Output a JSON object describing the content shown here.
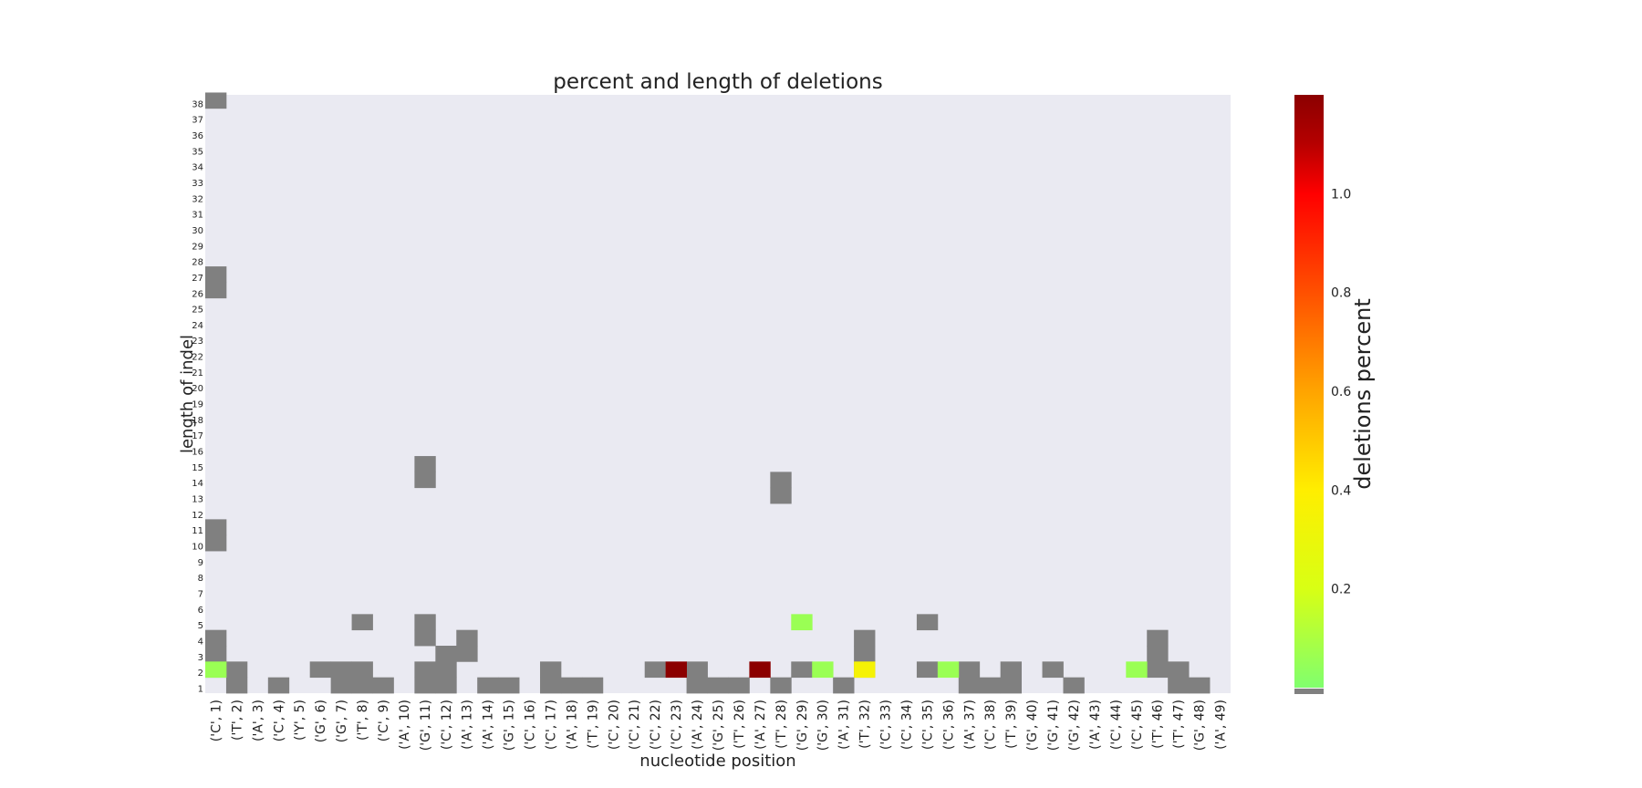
{
  "chart_data": {
    "type": "heatmap",
    "title": "percent and length of deletions",
    "xlabel": "nucleotide position",
    "ylabel": "length of indel",
    "colorbar_label": "deletions percent",
    "x_categories": [
      "('C', 1)",
      "('T', 2)",
      "('A', 3)",
      "('C', 4)",
      "('Y', 5)",
      "('G', 6)",
      "('G', 7)",
      "('T', 8)",
      "('C', 9)",
      "('A', 10)",
      "('G', 11)",
      "('C', 12)",
      "('A', 13)",
      "('A', 14)",
      "('G', 15)",
      "('C', 16)",
      "('C', 17)",
      "('A', 18)",
      "('T', 19)",
      "('C', 20)",
      "('C', 21)",
      "('C', 22)",
      "('C', 23)",
      "('A', 24)",
      "('G', 25)",
      "('T', 26)",
      "('A', 27)",
      "('T', 28)",
      "('G', 29)",
      "('G', 30)",
      "('A', 31)",
      "('T', 32)",
      "('C', 33)",
      "('C', 34)",
      "('C', 35)",
      "('C', 36)",
      "('A', 37)",
      "('C', 38)",
      "('T', 39)",
      "('G', 40)",
      "('G', 41)",
      "('G', 42)",
      "('A', 43)",
      "('C', 44)",
      "('C', 45)",
      "('T', 46)",
      "('T', 47)",
      "('G', 48)",
      "('A', 49)"
    ],
    "y_categories": [
      "1",
      "2",
      "3",
      "4",
      "5",
      "6",
      "7",
      "8",
      "9",
      "10",
      "11",
      "12",
      "13",
      "14",
      "15",
      "16",
      "17",
      "18",
      "19",
      "20",
      "21",
      "22",
      "23",
      "24",
      "25",
      "26",
      "27",
      "28",
      "29",
      "30",
      "31",
      "32",
      "33",
      "34",
      "35",
      "36",
      "37",
      "38"
    ],
    "colorbar_ticks": [
      "0.2",
      "0.4",
      "0.6",
      "0.8",
      "1.0"
    ],
    "colorbar_range": [
      0.0,
      1.2
    ],
    "colors": {
      "background": "#eaeaf2",
      "low_count": "#808080",
      "scale": [
        "#80ff6e",
        "#d8ff14",
        "#ffee00",
        "#ffa400",
        "#ff5000",
        "#ff0000",
        "#b40000",
        "#8b0000"
      ]
    },
    "low_cells": [
      [
        0,
        1
      ],
      [
        0,
        2
      ],
      [
        0,
        3
      ],
      [
        0,
        9
      ],
      [
        0,
        10
      ],
      [
        0,
        25
      ],
      [
        0,
        26
      ],
      [
        0,
        37
      ],
      [
        1,
        0
      ],
      [
        1,
        1
      ],
      [
        3,
        0
      ],
      [
        5,
        1
      ],
      [
        6,
        0
      ],
      [
        6,
        1
      ],
      [
        7,
        0
      ],
      [
        7,
        1
      ],
      [
        7,
        4
      ],
      [
        8,
        0
      ],
      [
        10,
        0
      ],
      [
        10,
        1
      ],
      [
        10,
        3
      ],
      [
        10,
        4
      ],
      [
        10,
        13
      ],
      [
        10,
        14
      ],
      [
        11,
        0
      ],
      [
        11,
        1
      ],
      [
        11,
        2
      ],
      [
        12,
        2
      ],
      [
        12,
        3
      ],
      [
        13,
        0
      ],
      [
        14,
        0
      ],
      [
        16,
        0
      ],
      [
        16,
        1
      ],
      [
        17,
        0
      ],
      [
        18,
        0
      ],
      [
        21,
        1
      ],
      [
        23,
        0
      ],
      [
        23,
        1
      ],
      [
        24,
        0
      ],
      [
        25,
        0
      ],
      [
        27,
        0
      ],
      [
        27,
        12
      ],
      [
        27,
        13
      ],
      [
        28,
        1
      ],
      [
        30,
        0
      ],
      [
        31,
        1
      ],
      [
        31,
        2
      ],
      [
        31,
        3
      ],
      [
        34,
        1
      ],
      [
        34,
        4
      ],
      [
        36,
        0
      ],
      [
        36,
        1
      ],
      [
        37,
        0
      ],
      [
        38,
        0
      ],
      [
        38,
        1
      ],
      [
        40,
        1
      ],
      [
        41,
        0
      ],
      [
        45,
        1
      ],
      [
        45,
        2
      ],
      [
        45,
        3
      ],
      [
        46,
        0
      ],
      [
        46,
        1
      ],
      [
        47,
        0
      ]
    ],
    "value_cells": [
      {
        "x": "('C', 1)",
        "y": "2",
        "value": 0.05
      },
      {
        "x": "('C', 23)",
        "y": "2",
        "value": 1.2
      },
      {
        "x": "('A', 27)",
        "y": "2",
        "value": 1.2
      },
      {
        "x": "('G', 29)",
        "y": "5",
        "value": 0.05
      },
      {
        "x": "('G', 30)",
        "y": "2",
        "value": 0.05
      },
      {
        "x": "('T', 32)",
        "y": "2",
        "value": 0.3
      },
      {
        "x": "('C', 36)",
        "y": "2",
        "value": 0.05
      },
      {
        "x": "('C', 45)",
        "y": "2",
        "value": 0.05
      }
    ]
  }
}
